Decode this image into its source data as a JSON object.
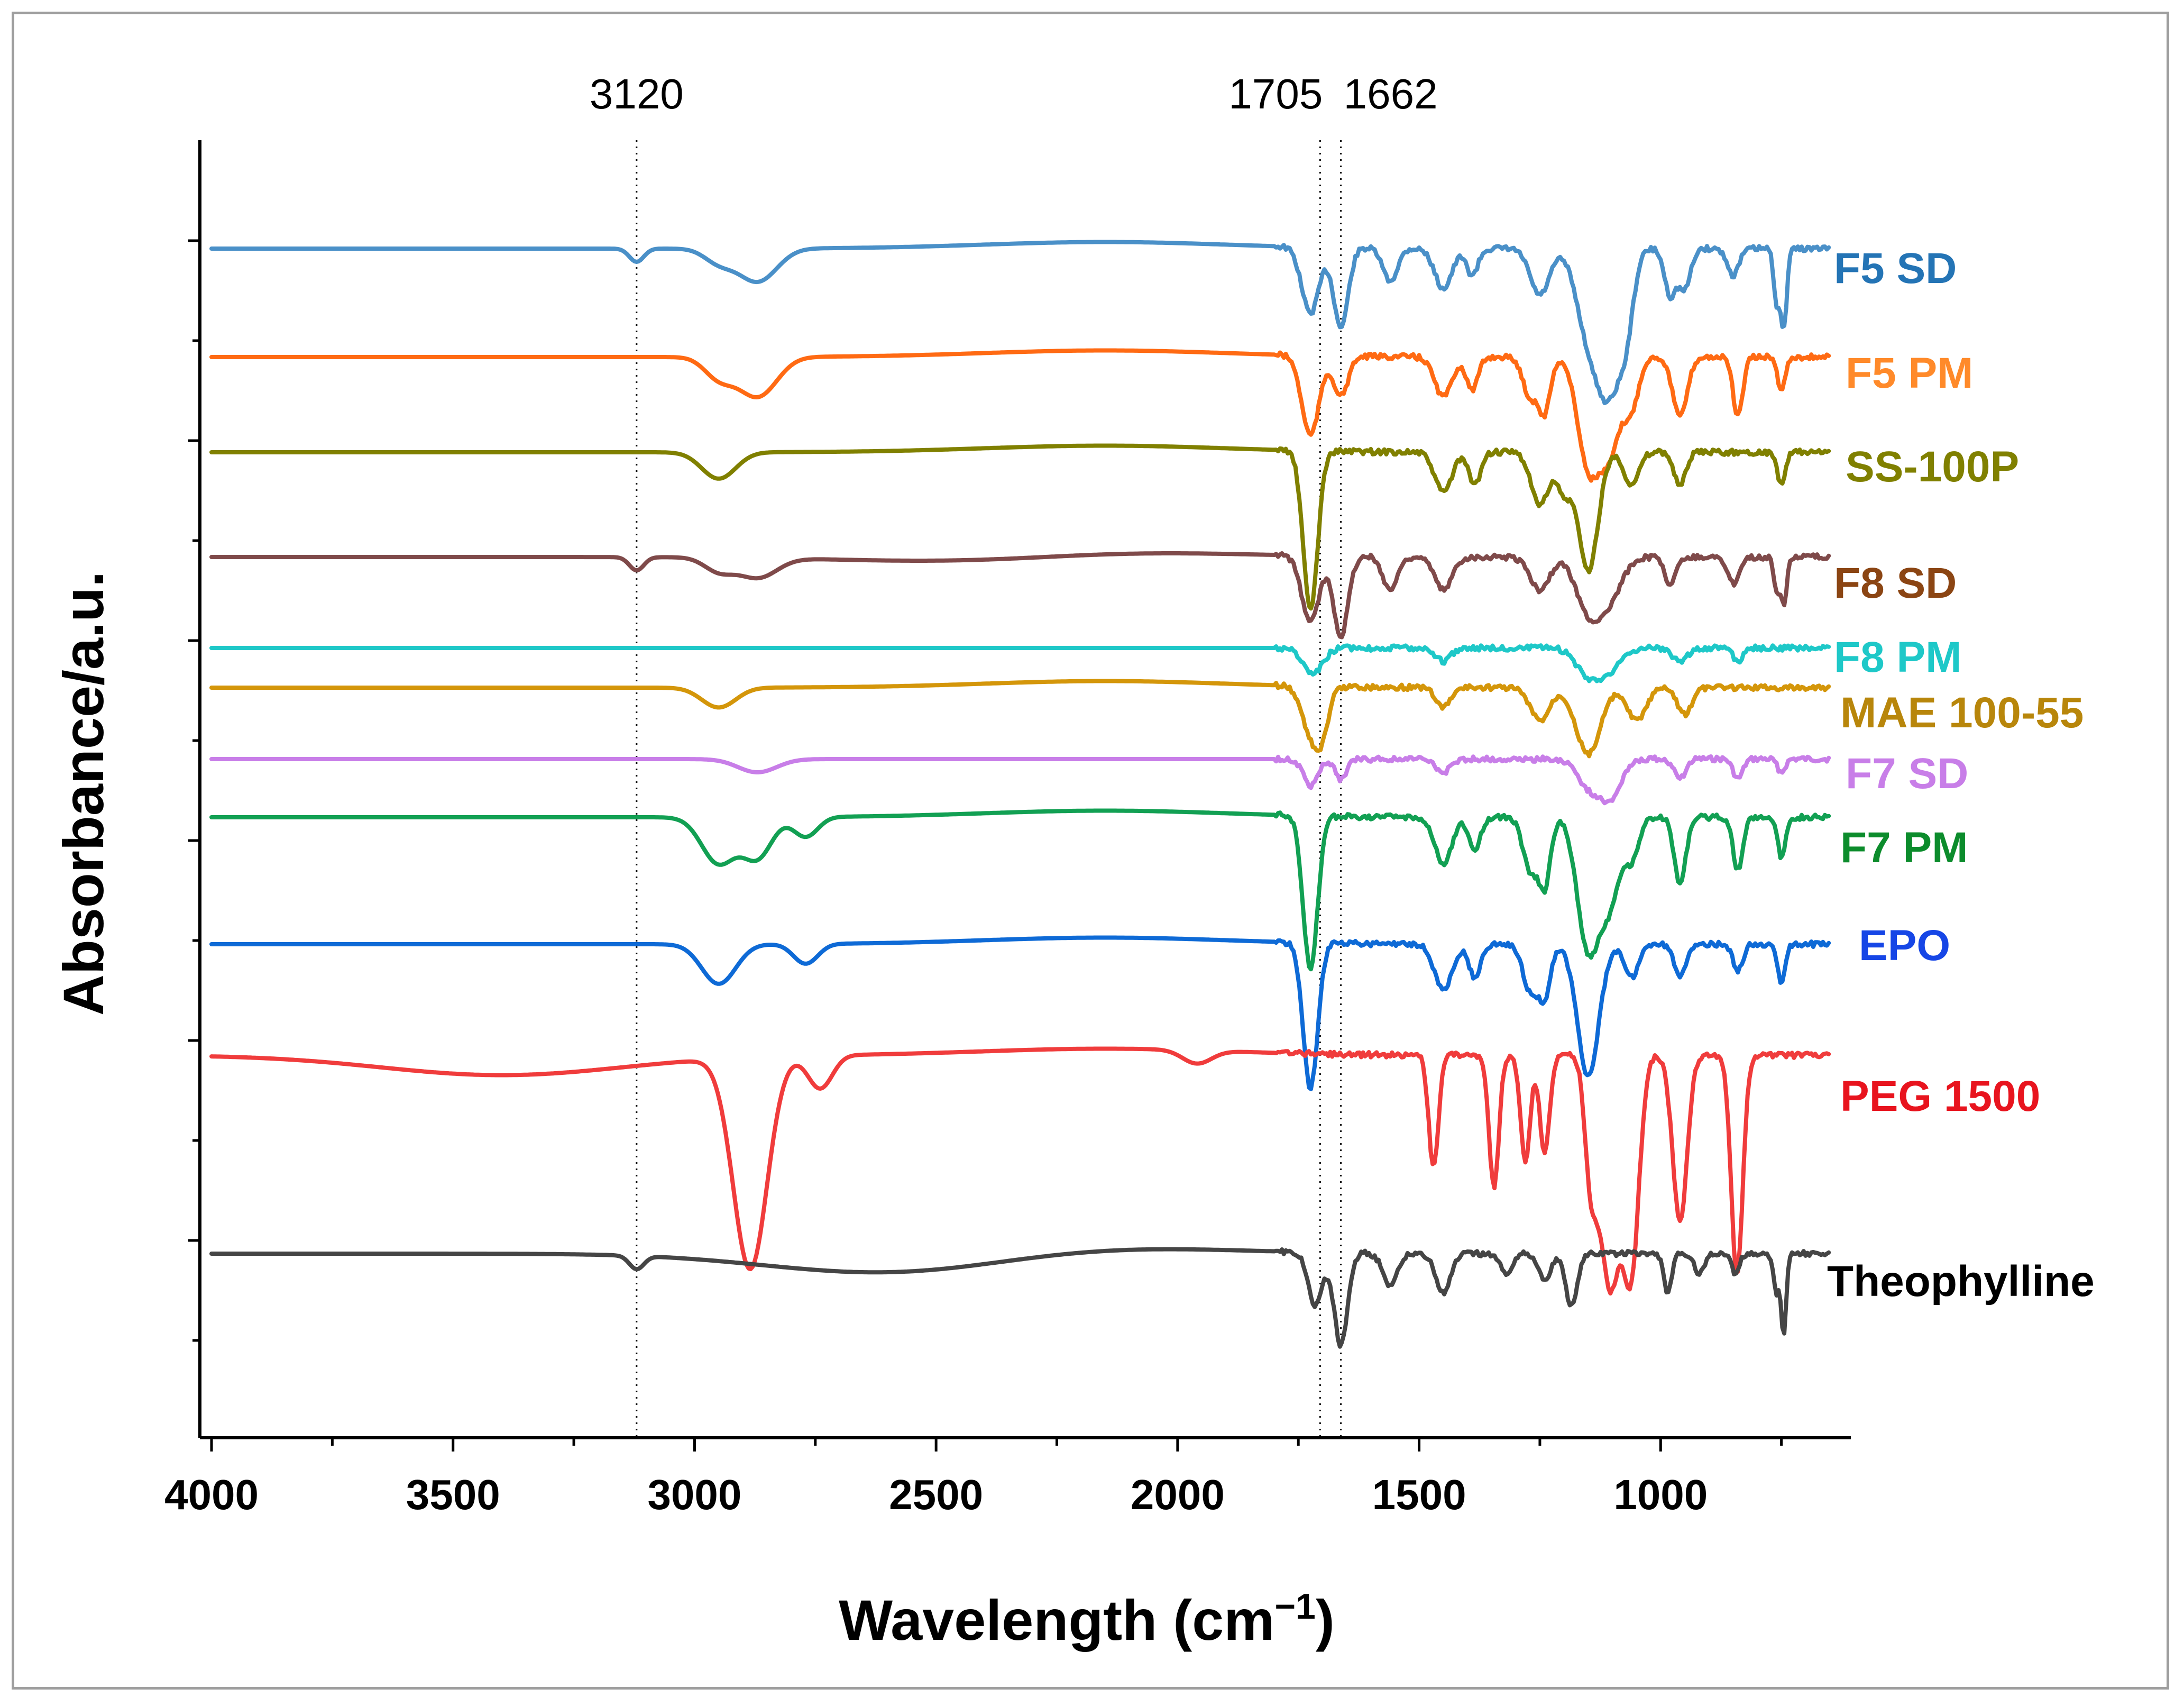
{
  "chart_data": {
    "type": "line",
    "title": "",
    "xlabel": "Wavelength (cm",
    "xlabel_unit_sup": "−1",
    "xlabel_close": ")",
    "ylabel": "Absorbance/a.u.",
    "xlim": [
      4000,
      650
    ],
    "x_reversed": true,
    "xticks": [
      4000,
      3500,
      3000,
      2500,
      2000,
      1500,
      1000
    ],
    "reference_lines": [
      {
        "x": 3120,
        "label": "3120"
      },
      {
        "x": 1705,
        "label": "1705"
      },
      {
        "x": 1662,
        "label": "1662"
      }
    ],
    "series": [
      {
        "name": "F5 SD",
        "color": "#4a90c8",
        "label_color": "#2474b5",
        "baseline": 1.0,
        "bands": [
          [
            3120,
            0.02,
            15
          ],
          [
            2870,
            0.05,
            40
          ],
          [
            2950,
            0.02,
            30
          ],
          [
            1725,
            0.1,
            18
          ],
          [
            1662,
            0.12,
            15
          ],
          [
            1560,
            0.05,
            15
          ],
          [
            1450,
            0.06,
            18
          ],
          [
            1390,
            0.04,
            12
          ],
          [
            1250,
            0.07,
            20
          ],
          [
            1150,
            0.12,
            25
          ],
          [
            1105,
            0.2,
            25
          ],
          [
            1070,
            0.08,
            15
          ],
          [
            980,
            0.07,
            12
          ],
          [
            950,
            0.06,
            12
          ],
          [
            850,
            0.04,
            12
          ],
          [
            760,
            0.08,
            6
          ],
          [
            745,
            0.12,
            6
          ]
        ],
        "drift": [
          [
            2150,
            0.01,
            250
          ]
        ]
      },
      {
        "name": "F5 PM",
        "color": "#ff6a13",
        "label_color": "#ff8a2a",
        "baseline": 1.0,
        "bands": [
          [
            2870,
            0.06,
            40
          ],
          [
            2950,
            0.03,
            30
          ],
          [
            1725,
            0.12,
            18
          ],
          [
            1662,
            0.06,
            15
          ],
          [
            1450,
            0.06,
            18
          ],
          [
            1390,
            0.05,
            12
          ],
          [
            1270,
            0.06,
            15
          ],
          [
            1240,
            0.08,
            12
          ],
          [
            1150,
            0.16,
            22
          ],
          [
            1105,
            0.14,
            22
          ],
          [
            1060,
            0.07,
            15
          ],
          [
            960,
            0.09,
            15
          ],
          [
            840,
            0.09,
            10
          ],
          [
            750,
            0.05,
            8
          ]
        ],
        "drift": [
          [
            2150,
            0.01,
            250
          ]
        ]
      },
      {
        "name": "SS-100P",
        "color": "#808000",
        "label_color": "#808000",
        "baseline": 1.0,
        "bands": [
          [
            2950,
            0.04,
            35
          ],
          [
            1725,
            0.24,
            15
          ],
          [
            1450,
            0.06,
            18
          ],
          [
            1385,
            0.05,
            12
          ],
          [
            1250,
            0.08,
            18
          ],
          [
            1200,
            0.06,
            15
          ],
          [
            1150,
            0.18,
            20
          ],
          [
            1060,
            0.05,
            15
          ],
          [
            960,
            0.05,
            12
          ],
          [
            750,
            0.05,
            8
          ]
        ],
        "drift": [
          [
            2150,
            0.01,
            250
          ]
        ]
      },
      {
        "name": "F8 SD",
        "color": "#7f4a4a",
        "label_color": "#8b4513",
        "baseline": 1.0,
        "bands": [
          [
            3120,
            0.02,
            15
          ],
          [
            2870,
            0.03,
            40
          ],
          [
            2950,
            0.02,
            30
          ],
          [
            2400,
            0.01,
            250
          ],
          [
            1725,
            0.1,
            18
          ],
          [
            1662,
            0.12,
            15
          ],
          [
            1560,
            0.05,
            15
          ],
          [
            1450,
            0.05,
            18
          ],
          [
            1250,
            0.05,
            20
          ],
          [
            1150,
            0.08,
            25
          ],
          [
            1105,
            0.06,
            25
          ],
          [
            980,
            0.04,
            12
          ],
          [
            850,
            0.04,
            12
          ],
          [
            760,
            0.05,
            6
          ],
          [
            745,
            0.07,
            6
          ]
        ],
        "drift": [
          [
            2150,
            0.01,
            250
          ]
        ]
      },
      {
        "name": "F8 PM",
        "color": "#1ec8c8",
        "label_color": "#1ec8c8",
        "baseline": 1.0,
        "bands": [
          [
            1720,
            0.04,
            20
          ],
          [
            1450,
            0.02,
            15
          ],
          [
            1150,
            0.04,
            25
          ],
          [
            1105,
            0.03,
            25
          ],
          [
            960,
            0.02,
            15
          ],
          [
            840,
            0.02,
            10
          ]
        ],
        "drift": []
      },
      {
        "name": "MAE 100-55",
        "color": "#d4960a",
        "label_color": "#b8860b",
        "baseline": 1.0,
        "bands": [
          [
            2950,
            0.03,
            35
          ],
          [
            1725,
            0.07,
            18
          ],
          [
            1700,
            0.06,
            14
          ],
          [
            1450,
            0.03,
            15
          ],
          [
            1250,
            0.05,
            20
          ],
          [
            1150,
            0.1,
            25
          ],
          [
            1050,
            0.05,
            20
          ],
          [
            950,
            0.04,
            15
          ]
        ],
        "drift": [
          [
            2150,
            0.01,
            250
          ]
        ]
      },
      {
        "name": "F7 SD",
        "color": "#c87ee8",
        "label_color": "#c87ee8",
        "baseline": 1.0,
        "bands": [
          [
            2870,
            0.02,
            40
          ],
          [
            1725,
            0.04,
            15
          ],
          [
            1662,
            0.03,
            12
          ],
          [
            1450,
            0.02,
            15
          ],
          [
            1150,
            0.04,
            22
          ],
          [
            1105,
            0.06,
            22
          ],
          [
            960,
            0.03,
            12
          ],
          [
            840,
            0.03,
            10
          ],
          [
            750,
            0.02,
            8
          ]
        ],
        "drift": []
      },
      {
        "name": "F7 PM",
        "color": "#12a053",
        "label_color": "#0c8c2c",
        "baseline": 1.0,
        "bands": [
          [
            2950,
            0.07,
            35
          ],
          [
            2870,
            0.06,
            30
          ],
          [
            2770,
            0.03,
            25
          ],
          [
            1725,
            0.23,
            15
          ],
          [
            1450,
            0.07,
            18
          ],
          [
            1385,
            0.05,
            12
          ],
          [
            1270,
            0.08,
            15
          ],
          [
            1240,
            0.1,
            12
          ],
          [
            1150,
            0.2,
            22
          ],
          [
            1105,
            0.12,
            20
          ],
          [
            1060,
            0.06,
            15
          ],
          [
            960,
            0.1,
            12
          ],
          [
            840,
            0.08,
            10
          ],
          [
            750,
            0.06,
            8
          ]
        ],
        "drift": [
          [
            2150,
            0.01,
            250
          ]
        ]
      },
      {
        "name": "EPO",
        "color": "#0e6ad6",
        "label_color": "#1646e6",
        "baseline": 1.0,
        "bands": [
          [
            2950,
            0.06,
            35
          ],
          [
            2770,
            0.03,
            25
          ],
          [
            1725,
            0.22,
            15
          ],
          [
            1450,
            0.07,
            18
          ],
          [
            1385,
            0.05,
            12
          ],
          [
            1270,
            0.07,
            15
          ],
          [
            1240,
            0.08,
            12
          ],
          [
            1150,
            0.2,
            22
          ],
          [
            1060,
            0.05,
            15
          ],
          [
            960,
            0.05,
            12
          ],
          [
            840,
            0.04,
            10
          ],
          [
            750,
            0.06,
            8
          ]
        ],
        "drift": [
          [
            2150,
            0.01,
            250
          ]
        ]
      },
      {
        "name": "PEG 1500",
        "color": "#f03c3c",
        "label_color": "#e8141e",
        "baseline": 1.0,
        "bands": [
          [
            3400,
            0.03,
            250
          ],
          [
            2885,
            0.32,
            35
          ],
          [
            2740,
            0.05,
            25
          ],
          [
            1960,
            0.02,
            30
          ],
          [
            1470,
            0.17,
            10
          ],
          [
            1345,
            0.2,
            10
          ],
          [
            1280,
            0.16,
            10
          ],
          [
            1240,
            0.15,
            10
          ],
          [
            1145,
            0.16,
            12
          ],
          [
            1105,
            0.35,
            22
          ],
          [
            1060,
            0.3,
            16
          ],
          [
            960,
            0.25,
            15
          ],
          [
            842,
            0.33,
            12
          ]
        ],
        "drift": [
          [
            2150,
            0.01,
            250
          ]
        ]
      },
      {
        "name": "Theophylline",
        "color": "#454545",
        "label_color": "#000000",
        "baseline": 1.0,
        "bands": [
          [
            3120,
            0.02,
            15
          ],
          [
            2600,
            0.03,
            250
          ],
          [
            1715,
            0.08,
            15
          ],
          [
            1662,
            0.14,
            14
          ],
          [
            1560,
            0.05,
            15
          ],
          [
            1450,
            0.06,
            15
          ],
          [
            1320,
            0.03,
            12
          ],
          [
            1240,
            0.04,
            12
          ],
          [
            1185,
            0.08,
            12
          ],
          [
            985,
            0.06,
            8
          ],
          [
            920,
            0.03,
            10
          ],
          [
            845,
            0.03,
            8
          ],
          [
            760,
            0.06,
            6
          ],
          [
            745,
            0.12,
            5
          ]
        ],
        "drift": [
          [
            2150,
            0.01,
            250
          ]
        ]
      }
    ]
  }
}
